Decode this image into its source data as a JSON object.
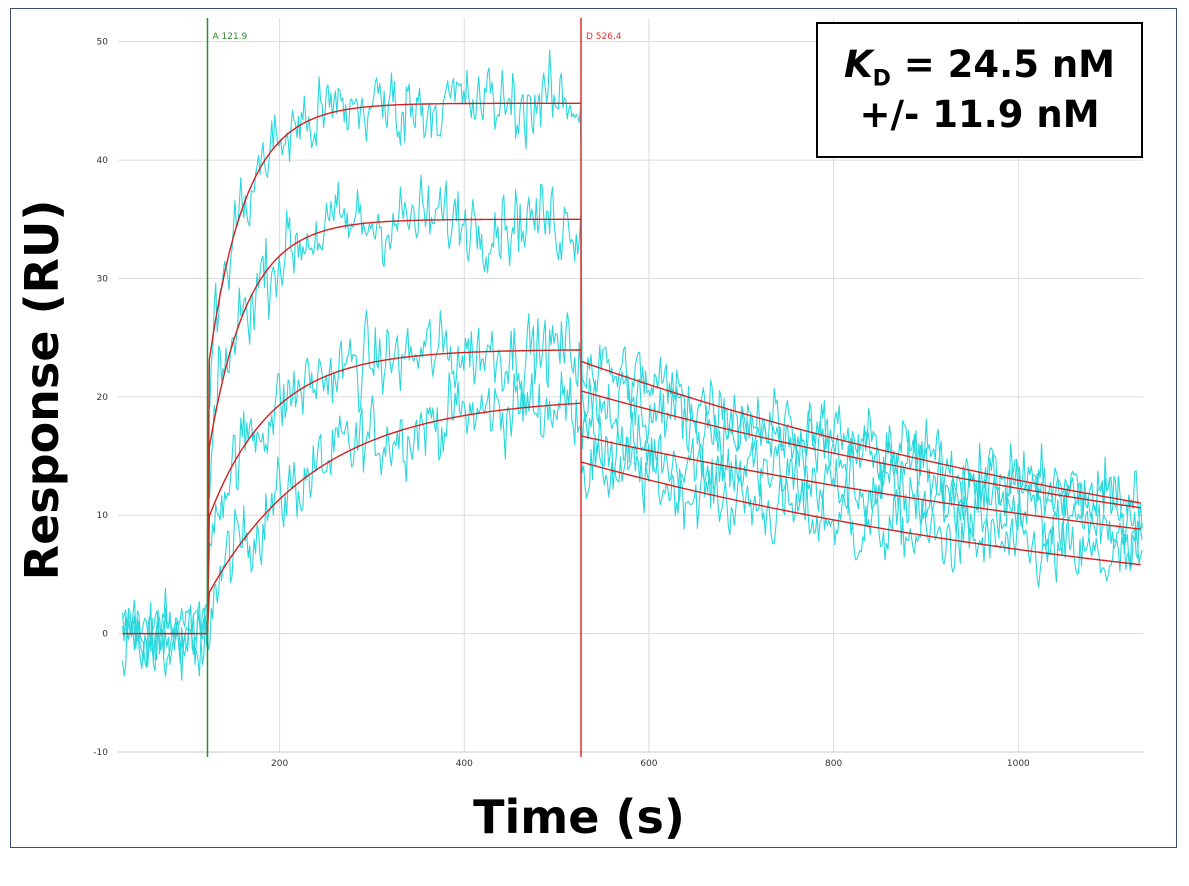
{
  "chart_data": {
    "type": "line",
    "title": "",
    "xlabel": "Time (s)",
    "ylabel": "Response (RU)",
    "xlim": [
      25,
      1135
    ],
    "ylim": [
      -10,
      52
    ],
    "x_ticks": [
      200,
      400,
      600,
      800,
      1000
    ],
    "y_ticks": [
      -10,
      0,
      10,
      20,
      30,
      40,
      50
    ],
    "grid": true,
    "markers": [
      {
        "label": "A 121.9",
        "x": 121.9,
        "color": "#2e8b2e"
      },
      {
        "label": "D 526.4",
        "x": 526.4,
        "color": "#e03030"
      }
    ],
    "baseline": {
      "x_start": 30,
      "x_end": 121.9,
      "y": 0
    },
    "series": [
      {
        "association_start": 3.2,
        "association_plateau": 20.0,
        "association_k": 0.0085,
        "dissociation_start": 14.5,
        "dissociation_end": 5.8
      },
      {
        "association_start": 9.5,
        "association_plateau": 24.0,
        "association_k": 0.0145,
        "dissociation_start": 16.7,
        "dissociation_end": 8.8
      },
      {
        "association_start": 14.8,
        "association_plateau": 35.0,
        "association_k": 0.024,
        "dissociation_start": 20.5,
        "dissociation_end": 10.6
      },
      {
        "association_start": 22.0,
        "association_plateau": 44.8,
        "association_k": 0.025,
        "dissociation_start": 23.0,
        "dissociation_end": 11.0
      }
    ],
    "fit_color": "#d42020",
    "data_color": "#28d8dc",
    "annotation": {
      "kd_symbol": "K",
      "kd_sub": "D",
      "kd_value": " = 24.5 nM",
      "kd_error": "+/- 11.9 nM"
    }
  }
}
